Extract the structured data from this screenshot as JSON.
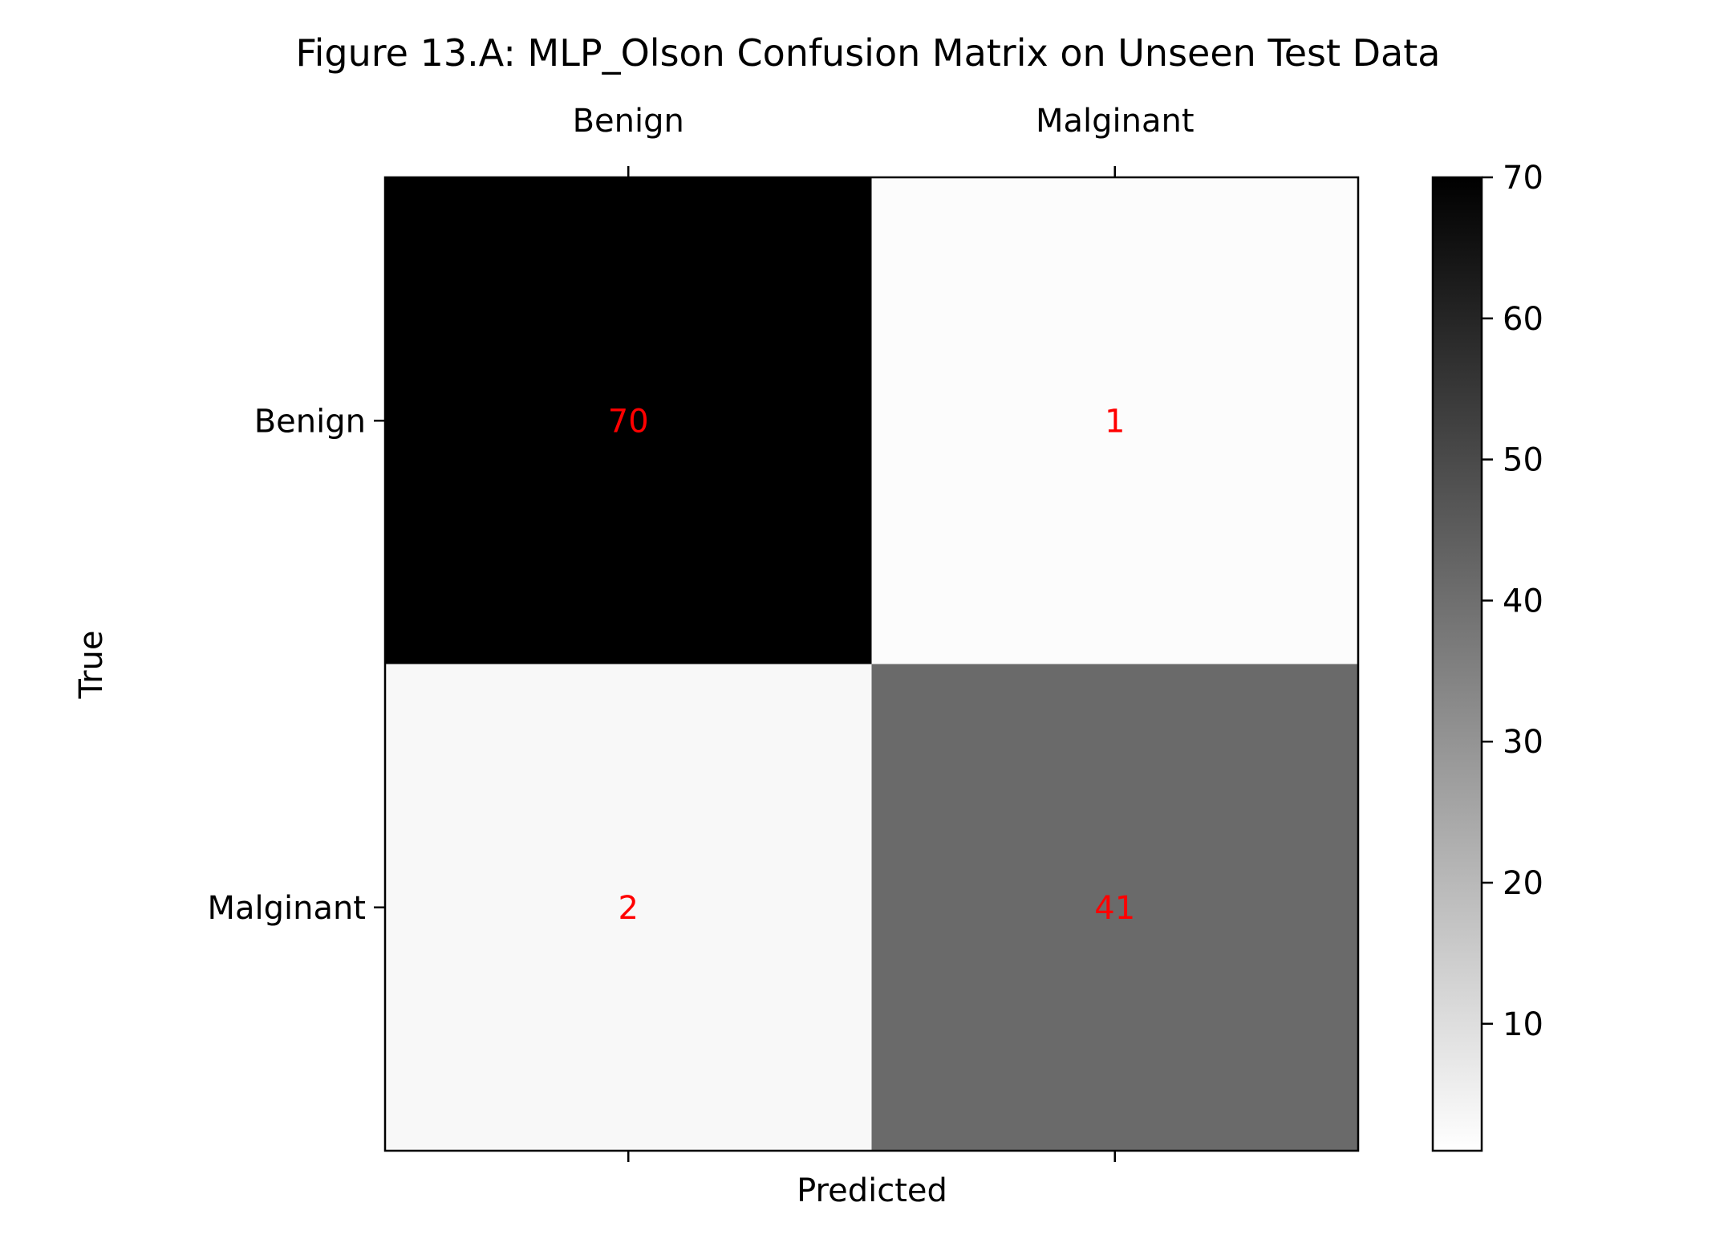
{
  "chart_data": {
    "type": "heatmap",
    "title": "Figure 13.A: MLP_Olson Confusion Matrix on Unseen Test Data",
    "xlabel": "Predicted",
    "ylabel": "True",
    "x_categories": [
      "Benign",
      "Malginant"
    ],
    "y_categories": [
      "Benign",
      "Malginant"
    ],
    "values": [
      [
        70,
        1
      ],
      [
        2,
        41
      ]
    ],
    "colormap": "Greys",
    "annotation_color": "#ff0000",
    "colorbar": {
      "vmin": 1,
      "vmax": 70,
      "ticks": [
        10,
        20,
        30,
        40,
        50,
        60,
        70
      ]
    },
    "grid": false
  }
}
